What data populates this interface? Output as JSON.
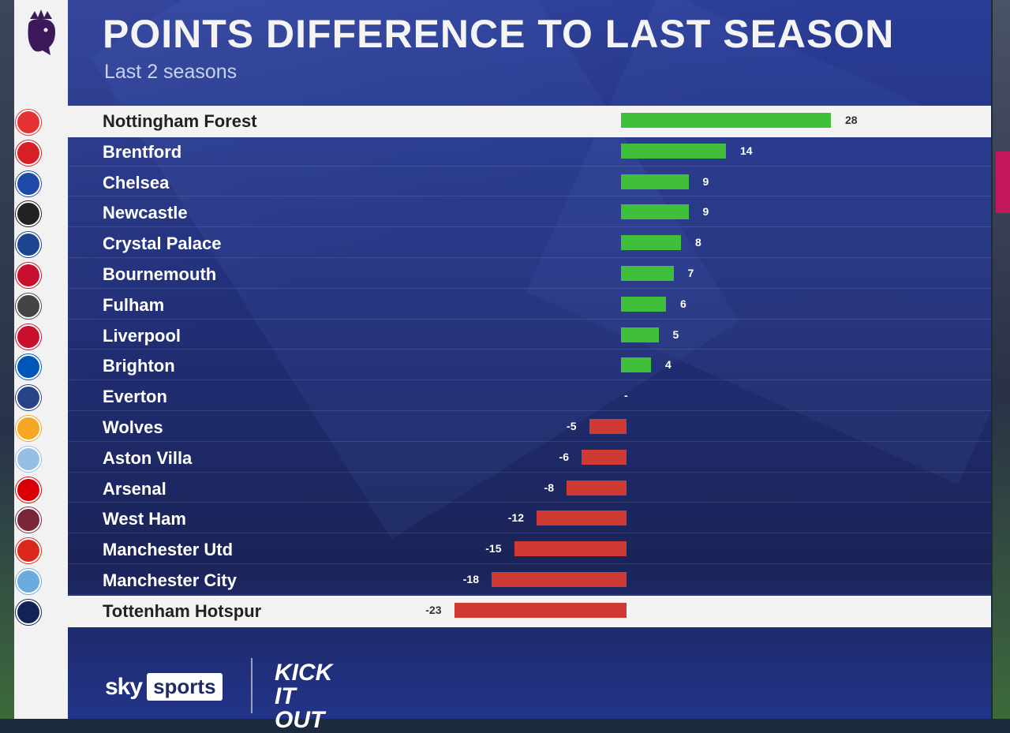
{
  "title": "POINTS DIFFERENCE TO LAST SEASON",
  "subtitle": "Last 2 seasons",
  "branding": {
    "sky_word": "sky",
    "sports_word": "sports",
    "kick_it_out": "KICK IT OUT"
  },
  "colors": {
    "positive": "#3fbf3a",
    "negative": "#d03a34",
    "highlight_row": "#f3f3f3",
    "panel": "#22307a"
  },
  "chart_data": {
    "type": "bar",
    "orientation": "horizontal",
    "title": "POINTS DIFFERENCE TO LAST SEASON",
    "subtitle": "Last 2 seasons",
    "categories": [
      "Nottingham Forest",
      "Brentford",
      "Chelsea",
      "Newcastle",
      "Crystal Palace",
      "Bournemouth",
      "Fulham",
      "Liverpool",
      "Brighton",
      "Everton",
      "Wolves",
      "Aston Villa",
      "Arsenal",
      "West Ham",
      "Manchester Utd",
      "Manchester City",
      "Tottenham Hotspur"
    ],
    "values": [
      28,
      14,
      9,
      9,
      8,
      7,
      6,
      5,
      4,
      0,
      -5,
      -6,
      -8,
      -12,
      -15,
      -18,
      -23
    ],
    "value_labels": [
      "28",
      "14",
      "9",
      "9",
      "8",
      "7",
      "6",
      "5",
      "4",
      "-",
      "-5",
      "-6",
      "-8",
      "-12",
      "-15",
      "-18",
      "-23"
    ],
    "highlighted": [
      "Nottingham Forest",
      "Tottenham Hotspur"
    ],
    "grid": false,
    "legend": "none"
  },
  "badges": [
    {
      "team": "Nottingham Forest",
      "icon": "nottingham-forest-badge-icon",
      "color": "#e53233",
      "text": ""
    },
    {
      "team": "Brentford",
      "icon": "brentford-badge-icon",
      "color": "#d71f26",
      "text": ""
    },
    {
      "team": "Chelsea",
      "icon": "chelsea-badge-icon",
      "color": "#1f4aa8",
      "text": ""
    },
    {
      "team": "Newcastle",
      "icon": "newcastle-badge-icon",
      "color": "#222222",
      "text": ""
    },
    {
      "team": "Crystal Palace",
      "icon": "crystal-palace-badge-icon",
      "color": "#1b458f",
      "text": ""
    },
    {
      "team": "Bournemouth",
      "icon": "bournemouth-badge-icon",
      "color": "#c8102e",
      "text": ""
    },
    {
      "team": "Fulham",
      "icon": "fulham-badge-icon",
      "color": "#444444",
      "text": ""
    },
    {
      "team": "Liverpool",
      "icon": "liverpool-badge-icon",
      "color": "#c8102e",
      "text": ""
    },
    {
      "team": "Brighton",
      "icon": "brighton-badge-icon",
      "color": "#0057b8",
      "text": ""
    },
    {
      "team": "Everton",
      "icon": "everton-badge-icon",
      "color": "#274488",
      "text": ""
    },
    {
      "team": "Wolves",
      "icon": "wolves-badge-icon",
      "color": "#f5a623",
      "text": ""
    },
    {
      "team": "Aston Villa",
      "icon": "aston-villa-badge-icon",
      "color": "#95bfe5",
      "text": ""
    },
    {
      "team": "Arsenal",
      "icon": "arsenal-badge-icon",
      "color": "#db0007",
      "text": ""
    },
    {
      "team": "West Ham",
      "icon": "west-ham-badge-icon",
      "color": "#7a263a",
      "text": ""
    },
    {
      "team": "Manchester Utd",
      "icon": "manchester-utd-badge-icon",
      "color": "#da291c",
      "text": ""
    },
    {
      "team": "Manchester City",
      "icon": "manchester-city-badge-icon",
      "color": "#6cabdd",
      "text": ""
    },
    {
      "team": "Tottenham Hotspur",
      "icon": "tottenham-hotspur-badge-icon",
      "color": "#132257",
      "text": ""
    }
  ]
}
